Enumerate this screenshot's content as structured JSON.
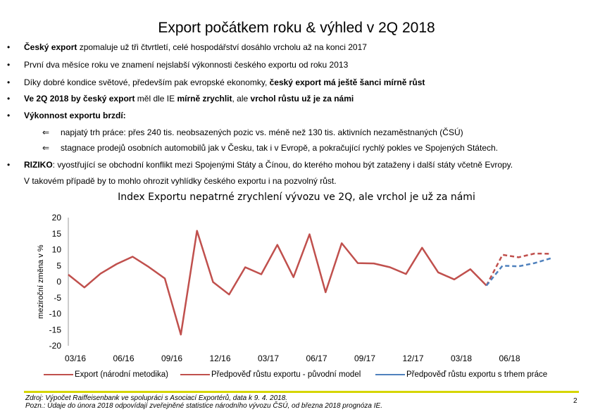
{
  "title": "Export počátkem roku & výhled v 2Q 2018",
  "bullets": [
    {
      "bold": "Český export",
      "rest": " zpomaluje už tři čtvrtletí,  celé hospodářství dosáhlo vrcholu až na konci 2017"
    },
    {
      "text": "První dva měsíce roku ve znamení nejslabší výkonnosti českého exportu od roku 2013"
    },
    {
      "text": "Díky dobré kondice světové, především pak evropské ekonomky, ",
      "bold": "český export má ještě šanci mírně růst"
    },
    {
      "bold1": "Ve 2Q 2018 by český export",
      "mid": " měl dle IE ",
      "bold2": "mírně zrychlit",
      "mid2": ", ale ",
      "bold3": "vrchol růstu už je za námi"
    },
    {
      "bold": "Výkonnost exportu brzdí:"
    }
  ],
  "subbullets": [
    "napjatý trh práce: přes 240 tis. neobsazených pozic vs. méně než 130 tis. aktivních nezaměstnaných (ČSÚ)",
    "stagnace prodejů osobních automobilů jak v Česku, tak i v Evropě, a pokračující rychlý pokles ve Spojených Státech."
  ],
  "risk": {
    "bold": "RIZIKO",
    "rest": ":  vyostřující se obchodní konflikt mezi Spojenými Státy a Čínou, do kterého mohou být zataženy i další státy včetně Evropy.",
    "cont": "V takovém případě by to mohlo ohrozit vyhlídky českého exportu i na pozvolný růst."
  },
  "bullet_glyph": "•",
  "arrow_glyph": "⇐",
  "chart_data": {
    "type": "line",
    "title": "Index Exportu nepatrné zrychlení vývozu ve 2Q, ale vrchol je už za námi",
    "ylabel": "meziroční změna v %",
    "ylim": [
      -20,
      20
    ],
    "yticks": [
      "20",
      "15",
      "10",
      "5",
      "0",
      "-5",
      "-10",
      "-15",
      "-20"
    ],
    "xticks": [
      "03/16",
      "06/16",
      "09/16",
      "12/16",
      "03/17",
      "06/17",
      "09/17",
      "12/17",
      "03/18",
      "06/18"
    ],
    "series": [
      {
        "name": "Export (národní metodika)",
        "color": "#c0504d",
        "dashed": false,
        "points": [
          [
            0,
            2.2
          ],
          [
            1,
            -1.8
          ],
          [
            2,
            2.5
          ],
          [
            3,
            5.5
          ],
          [
            4,
            7.8
          ],
          [
            5,
            4.6
          ],
          [
            6,
            1.0
          ],
          [
            7,
            -16.5
          ],
          [
            8,
            15.9
          ],
          [
            9,
            -0.1
          ],
          [
            10,
            -4.0
          ],
          [
            11,
            4.5
          ],
          [
            12,
            2.3
          ],
          [
            13,
            11.5
          ],
          [
            14,
            1.4
          ],
          [
            15,
            14.8
          ],
          [
            16,
            -3.3
          ],
          [
            17,
            12.0
          ],
          [
            18,
            5.8
          ],
          [
            19,
            5.7
          ],
          [
            20,
            4.5
          ],
          [
            21,
            2.4
          ],
          [
            22,
            10.6
          ],
          [
            23,
            2.9
          ],
          [
            24,
            0.7
          ],
          [
            25,
            3.9
          ],
          [
            26,
            -1.2
          ]
        ]
      },
      {
        "name": "Předpověď růstu exportu - původní model",
        "color": "#c0504d",
        "dashed": true,
        "points": [
          [
            26,
            -1.2
          ],
          [
            27,
            8.4
          ],
          [
            28,
            7.6
          ],
          [
            29,
            8.8
          ],
          [
            30,
            8.7
          ]
        ]
      },
      {
        "name": "Předpověď růstu exportu s trhem práce",
        "color": "#4f81bd",
        "dashed": true,
        "points": [
          [
            26,
            -1.2
          ],
          [
            27,
            5.0
          ],
          [
            28,
            4.8
          ],
          [
            29,
            5.8
          ],
          [
            30,
            7.3
          ]
        ]
      }
    ]
  },
  "source_lines": [
    "Zdroj: Výpočet Raiffeisenbank ve spolupráci s Asociací Exportérů, data k 9. 4. 2018.",
    "Pozn.: Údaje do února 2018 odpovídají zveřejněné statistice národního vývozu ČSÚ, od března 2018 prognóza IE."
  ],
  "page_number": "2"
}
